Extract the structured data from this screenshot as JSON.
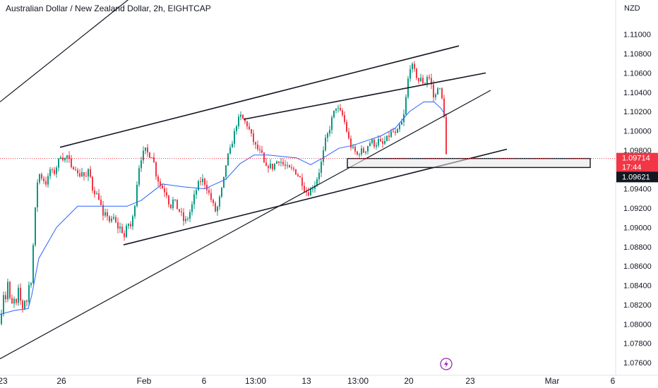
{
  "header": {
    "symbol_title": "Australian Dollar / New Zealand Dollar, 2h, EIGHTCAP",
    "currency": "NZD"
  },
  "colors": {
    "up": "#089981",
    "down": "#f23645",
    "ma": "#2962ff",
    "trendline": "#131722",
    "last_price_bg": "#f23645",
    "support_price_bg": "#131722",
    "dashed_line": "#f23645",
    "flash_icon": "#9c27b0"
  },
  "icons": {
    "flash": "lightning-bolt-icon"
  },
  "chart_data": {
    "type": "candlestick",
    "title": "Australian Dollar / New Zealand Dollar, 2h, EIGHTCAP",
    "ylabel": "NZD",
    "ylim": [
      1.0752,
      1.1118
    ],
    "y_ticks": [
      "1.11000",
      "1.10800",
      "1.10600",
      "1.10400",
      "1.10200",
      "1.10000",
      "1.09800",
      "1.09600",
      "1.09400",
      "1.09200",
      "1.09000",
      "1.08800",
      "1.08600",
      "1.08400",
      "1.08200",
      "1.08000",
      "1.07800",
      "1.07600"
    ],
    "x_ticks": [
      "23",
      "26",
      "Feb",
      "6",
      "13:00",
      "13",
      "13:00",
      "20",
      "23",
      "Mar",
      "6"
    ],
    "grid": false,
    "price_labels": {
      "last_price": "1.09714",
      "countdown": "17:44",
      "support_level": "1.09621"
    },
    "close_path": [
      [
        0,
        1.08
      ],
      [
        3,
        1.084
      ],
      [
        6,
        1.0815
      ],
      [
        9,
        1.085
      ],
      [
        12,
        1.083
      ],
      [
        15,
        1.0815
      ],
      [
        18,
        1.083
      ],
      [
        21,
        1.0815
      ],
      [
        25,
        1.0835
      ],
      [
        29,
        1.082
      ],
      [
        32,
        1.0815
      ],
      [
        35,
        1.083
      ],
      [
        38,
        1.082
      ],
      [
        41,
        1.085
      ],
      [
        43,
        1.0845
      ],
      [
        45,
        1.087
      ],
      [
        48,
        1.0905
      ],
      [
        51,
        1.0945
      ],
      [
        55,
        1.0955
      ],
      [
        60,
        1.095
      ],
      [
        65,
        1.0945
      ],
      [
        70,
        1.096
      ],
      [
        75,
        1.0955
      ],
      [
        80,
        1.0965
      ],
      [
        85,
        1.0975
      ],
      [
        90,
        1.097
      ],
      [
        95,
        1.0975
      ],
      [
        100,
        1.096
      ],
      [
        105,
        1.0965
      ],
      [
        110,
        1.0952
      ],
      [
        115,
        1.0958
      ],
      [
        120,
        1.095
      ],
      [
        125,
        1.096
      ],
      [
        130,
        1.094
      ],
      [
        135,
        1.0935
      ],
      [
        140,
        1.093
      ],
      [
        145,
        1.091
      ],
      [
        150,
        1.0915
      ],
      [
        155,
        1.0905
      ],
      [
        160,
        1.091
      ],
      [
        165,
        1.09
      ],
      [
        170,
        1.09
      ],
      [
        175,
        1.089
      ],
      [
        180,
        1.0905
      ],
      [
        185,
        1.09
      ],
      [
        190,
        1.0925
      ],
      [
        195,
        1.096
      ],
      [
        200,
        1.0975
      ],
      [
        205,
        1.098
      ],
      [
        210,
        1.0975
      ],
      [
        215,
        1.0975
      ],
      [
        220,
        1.0955
      ],
      [
        225,
        1.0945
      ],
      [
        230,
        1.094
      ],
      [
        235,
        1.0935
      ],
      [
        240,
        1.092
      ],
      [
        245,
        1.093
      ],
      [
        250,
        1.092
      ],
      [
        255,
        1.0915
      ],
      [
        260,
        1.0905
      ],
      [
        265,
        1.091
      ],
      [
        270,
        1.092
      ],
      [
        275,
        1.0935
      ],
      [
        280,
        1.0945
      ],
      [
        285,
        1.095
      ],
      [
        290,
        1.0945
      ],
      [
        295,
        1.0935
      ],
      [
        300,
        1.0925
      ],
      [
        305,
        1.0915
      ],
      [
        310,
        1.093
      ],
      [
        315,
        1.0945
      ],
      [
        320,
        1.097
      ],
      [
        325,
        1.098
      ],
      [
        330,
        1.0995
      ],
      [
        335,
        1.101
      ],
      [
        340,
        1.1015
      ],
      [
        345,
        1.101
      ],
      [
        350,
        1.1005
      ],
      [
        355,
        1.0995
      ],
      [
        360,
        1.0985
      ],
      [
        365,
        1.098
      ],
      [
        370,
        1.0975
      ],
      [
        375,
        1.096
      ],
      [
        380,
        1.0965
      ],
      [
        385,
        1.0962
      ],
      [
        390,
        1.0968
      ],
      [
        395,
        1.097
      ],
      [
        400,
        1.0965
      ],
      [
        405,
        1.0962
      ],
      [
        410,
        1.096
      ],
      [
        415,
        1.096
      ],
      [
        420,
        1.0955
      ],
      [
        425,
        1.095
      ],
      [
        430,
        1.094
      ],
      [
        435,
        1.0935
      ],
      [
        440,
        1.094
      ],
      [
        445,
        1.0945
      ],
      [
        450,
        1.0955
      ],
      [
        455,
        1.097
      ],
      [
        460,
        1.099
      ],
      [
        465,
        1.1
      ],
      [
        470,
        1.1015
      ],
      [
        475,
        1.1025
      ],
      [
        480,
        1.102
      ],
      [
        485,
        1.1015
      ],
      [
        490,
        1.1
      ],
      [
        495,
        1.0985
      ],
      [
        500,
        1.098
      ],
      [
        505,
        1.0975
      ],
      [
        510,
        1.098
      ],
      [
        515,
        1.0978
      ],
      [
        520,
        1.0985
      ],
      [
        525,
        1.099
      ],
      [
        530,
        1.0985
      ],
      [
        535,
        1.099
      ],
      [
        540,
        1.0985
      ],
      [
        545,
        1.099
      ],
      [
        550,
        1.0995
      ],
      [
        555,
        1.1
      ],
      [
        560,
        1.0995
      ],
      [
        565,
        1.1005
      ],
      [
        570,
        1.101
      ],
      [
        575,
        1.104
      ],
      [
        578,
        1.106
      ],
      [
        581,
        1.107
      ],
      [
        584,
        1.1065
      ],
      [
        587,
        1.106
      ],
      [
        590,
        1.1055
      ],
      [
        593,
        1.105
      ],
      [
        596,
        1.1055
      ],
      [
        599,
        1.1048
      ],
      [
        602,
        1.105
      ],
      [
        605,
        1.106
      ],
      [
        608,
        1.1052
      ],
      [
        611,
        1.1045
      ],
      [
        614,
        1.103
      ],
      [
        617,
        1.104
      ],
      [
        620,
        1.105
      ],
      [
        623,
        1.1038
      ],
      [
        626,
        1.103
      ],
      [
        629,
        1.101
      ],
      [
        631,
        1.0975
      ],
      [
        632,
        1.0971
      ]
    ],
    "moving_average": [
      [
        0,
        1.081
      ],
      [
        20,
        1.0814
      ],
      [
        40,
        1.0816
      ],
      [
        45,
        1.083
      ],
      [
        55,
        1.0868
      ],
      [
        80,
        1.09
      ],
      [
        110,
        1.0922
      ],
      [
        140,
        1.0922
      ],
      [
        180,
        1.0922
      ],
      [
        200,
        1.0928
      ],
      [
        230,
        1.0945
      ],
      [
        260,
        1.0942
      ],
      [
        290,
        1.094
      ],
      [
        320,
        1.095
      ],
      [
        340,
        1.0966
      ],
      [
        360,
        1.0975
      ],
      [
        380,
        1.0975
      ],
      [
        420,
        1.0972
      ],
      [
        440,
        1.0965
      ],
      [
        460,
        1.0973
      ],
      [
        480,
        1.0982
      ],
      [
        500,
        1.0985
      ],
      [
        520,
        1.099
      ],
      [
        540,
        1.0995
      ],
      [
        560,
        1.1003
      ],
      [
        580,
        1.102
      ],
      [
        600,
        1.103
      ],
      [
        615,
        1.103
      ],
      [
        625,
        1.1023
      ],
      [
        632,
        1.1015
      ]
    ],
    "trendlines": [
      {
        "name": "upper-channel-top",
        "from": [
          0,
          1.103
        ],
        "to": [
          230,
          1.1164
        ]
      },
      {
        "name": "wedge-upper-outer",
        "from": [
          85,
          1.0983
        ],
        "to": [
          650,
          1.1088
        ]
      },
      {
        "name": "wedge-upper-inner",
        "from": [
          345,
          1.1012
        ],
        "to": [
          688,
          1.106
        ]
      },
      {
        "name": "rising-support",
        "from": [
          0,
          1.0764
        ],
        "to": [
          695,
          1.1042
        ]
      },
      {
        "name": "wedge-lower",
        "from": [
          175,
          1.0882
        ],
        "to": [
          718,
          1.0981
        ]
      }
    ],
    "support_zone": {
      "x_start": 492,
      "x_end": 836,
      "y_top": 1.09714,
      "y_bottom": 1.09621
    }
  }
}
